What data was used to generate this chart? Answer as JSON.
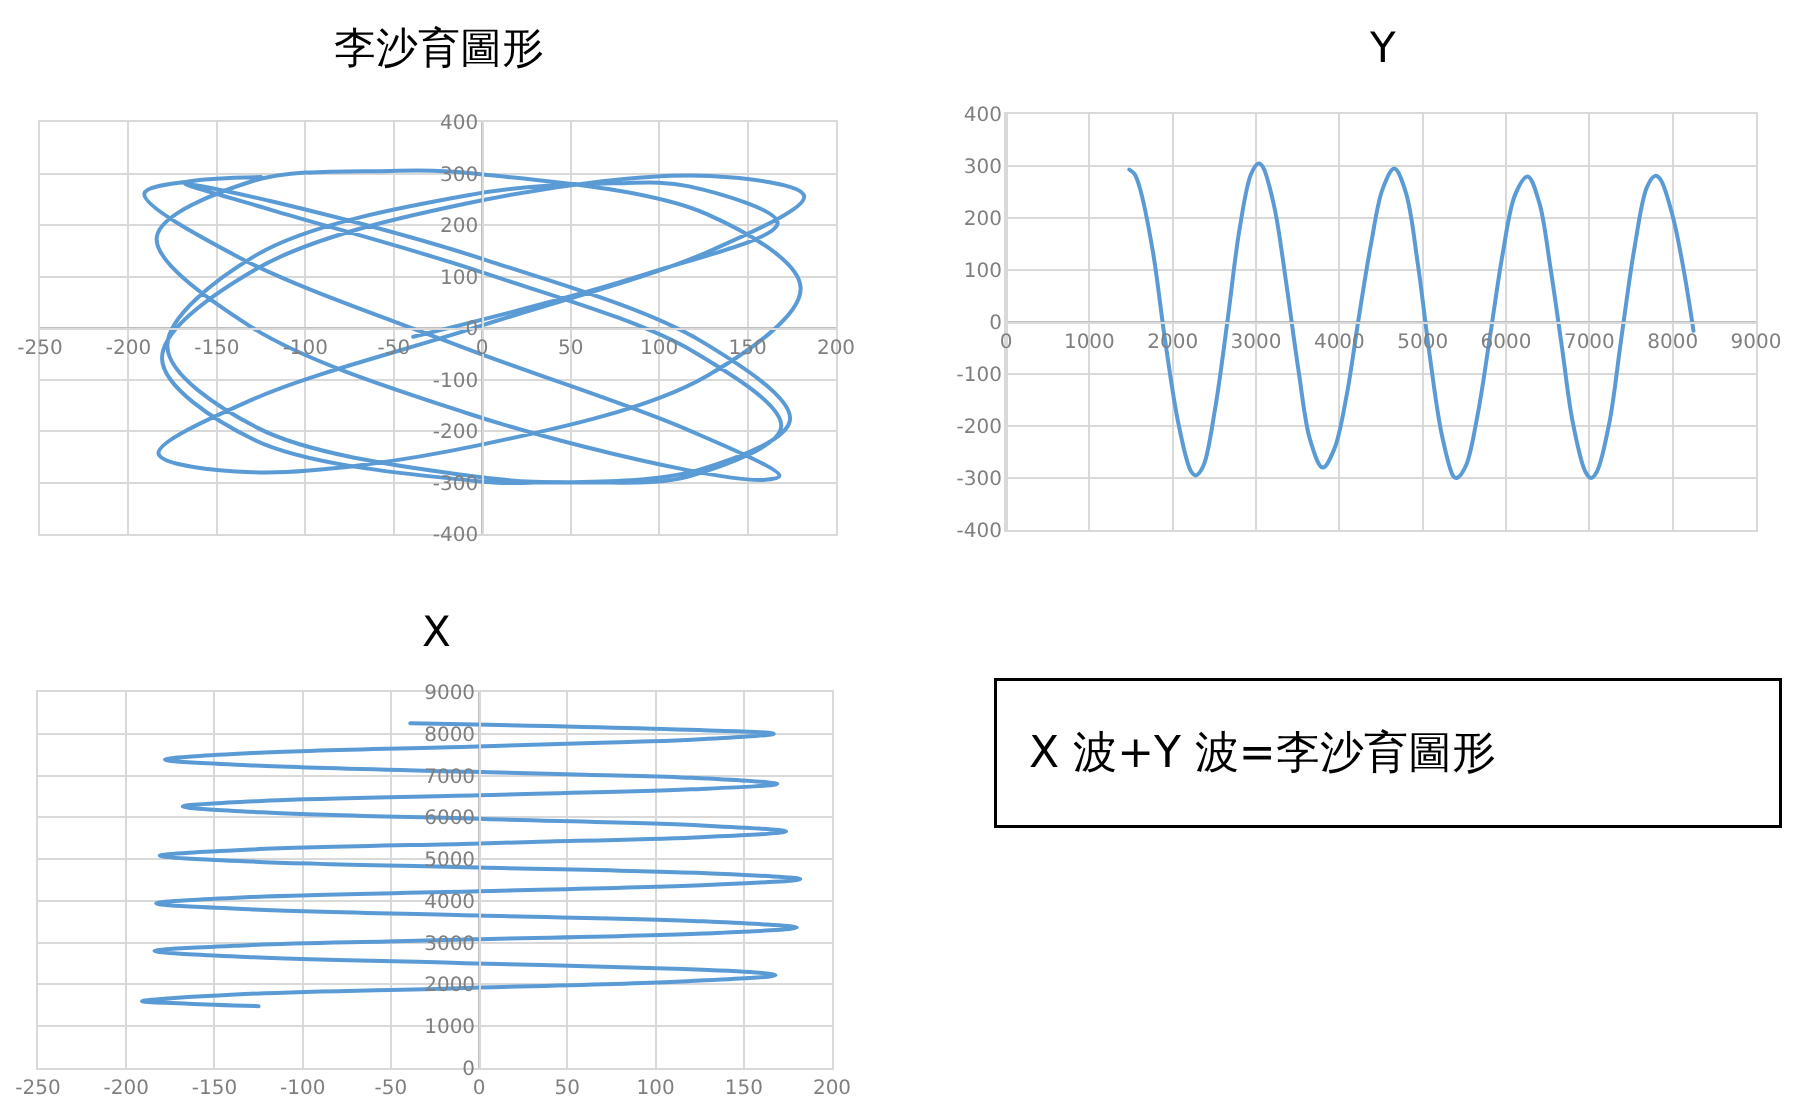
{
  "chart_data": [
    {
      "type": "line",
      "title": "李沙育圖形",
      "x": [
        -125,
        -165,
        -191,
        -138,
        -12,
        115,
        168,
        159,
        116,
        -8,
        -132,
        -184,
        -131,
        -52,
        -2,
        127,
        180,
        127,
        -1,
        -130,
        -183,
        -130,
        0,
        129,
        182,
        129,
        0,
        -128,
        -181,
        -129,
        -4,
        30,
        122,
        174,
        124,
        3,
        -118,
        -168,
        -119,
        0,
        120,
        169,
        118,
        60,
        -5,
        -127,
        -178,
        -128,
        -6,
        74,
        117,
        167,
        90,
        -39
      ],
      "series": [
        {
          "color": "#5b9bd5",
          "values": [
            293,
            285,
            261,
            138,
            -36,
            -196,
            -287,
            -295,
            -276,
            -166,
            5,
            176,
            284,
            305,
            299,
            221,
            78,
            -93,
            -227,
            -280,
            -244,
            -139,
            5,
            150,
            256,
            295,
            248,
            114,
            -59,
            -217,
            -297,
            -300,
            -276,
            -178,
            -26,
            131,
            245,
            280,
            229,
            108,
            -47,
            -192,
            -287,
            -300,
            -288,
            -194,
            -36,
            141,
            259,
            281,
            275,
            204,
            102,
            -17
          ]
        }
      ],
      "xlim": [
        -250,
        200
      ],
      "xticks": [
        -250,
        -200,
        -150,
        -100,
        -50,
        0,
        50,
        100,
        150,
        200
      ],
      "ylim": [
        -400,
        400
      ],
      "yticks": [
        -400,
        -300,
        -200,
        -100,
        0,
        100,
        200,
        300,
        400
      ],
      "grid": true
    },
    {
      "type": "line",
      "title": "Y",
      "x": [
        1480,
        1540,
        1600,
        1760,
        1910,
        2070,
        2220,
        2280,
        2370,
        2510,
        2660,
        2800,
        2940,
        3030,
        3080,
        3220,
        3360,
        3510,
        3650,
        3800,
        3940,
        4090,
        4230,
        4380,
        4520,
        4660,
        4800,
        4940,
        5080,
        5230,
        5370,
        5410,
        5520,
        5660,
        5810,
        5960,
        6110,
        6260,
        6400,
        6530,
        6670,
        6800,
        6950,
        7020,
        7090,
        7240,
        7380,
        7540,
        7690,
        7790,
        7850,
        8000,
        8130,
        8250
      ],
      "series": [
        {
          "color": "#5b9bd5",
          "values": [
            293,
            285,
            261,
            138,
            -36,
            -196,
            -287,
            -295,
            -276,
            -166,
            5,
            176,
            284,
            305,
            299,
            221,
            78,
            -93,
            -227,
            -280,
            -244,
            -139,
            5,
            150,
            256,
            295,
            248,
            114,
            -59,
            -217,
            -297,
            -300,
            -276,
            -178,
            -26,
            131,
            245,
            280,
            229,
            108,
            -47,
            -192,
            -287,
            -300,
            -288,
            -194,
            -36,
            141,
            259,
            281,
            275,
            204,
            102,
            -17
          ]
        }
      ],
      "xlim": [
        0,
        9000
      ],
      "xticks": [
        0,
        1000,
        2000,
        3000,
        4000,
        5000,
        6000,
        7000,
        8000,
        9000
      ],
      "ylim": [
        -400,
        400
      ],
      "yticks": [
        -400,
        -300,
        -200,
        -100,
        0,
        100,
        200,
        300,
        400
      ],
      "grid": true
    },
    {
      "type": "line",
      "title": "X",
      "x": [
        -125,
        -165,
        -191,
        -138,
        -12,
        115,
        168,
        159,
        116,
        -8,
        -132,
        -184,
        -131,
        -52,
        -2,
        127,
        180,
        127,
        -1,
        -130,
        -183,
        -130,
        0,
        129,
        182,
        129,
        0,
        -128,
        -181,
        -129,
        -4,
        30,
        122,
        174,
        124,
        3,
        -118,
        -168,
        -119,
        0,
        120,
        169,
        118,
        60,
        -5,
        -127,
        -178,
        -128,
        -6,
        74,
        117,
        167,
        90,
        -39
      ],
      "series": [
        {
          "color": "#5b9bd5",
          "values": [
            1480,
            1540,
            1600,
            1760,
            1910,
            2070,
            2220,
            2280,
            2370,
            2510,
            2660,
            2800,
            2940,
            3030,
            3080,
            3220,
            3360,
            3510,
            3650,
            3800,
            3940,
            4090,
            4230,
            4380,
            4520,
            4660,
            4800,
            4940,
            5080,
            5230,
            5370,
            5410,
            5520,
            5660,
            5810,
            5960,
            6110,
            6260,
            6400,
            6530,
            6670,
            6800,
            6950,
            7020,
            7090,
            7240,
            7380,
            7540,
            7690,
            7790,
            7850,
            8000,
            8130,
            8250
          ]
        }
      ],
      "xlim": [
        -250,
        200
      ],
      "xticks": [
        -250,
        -200,
        -150,
        -100,
        -50,
        0,
        50,
        100,
        150,
        200
      ],
      "ylim": [
        0,
        9000
      ],
      "yticks": [
        0,
        1000,
        2000,
        3000,
        4000,
        5000,
        6000,
        7000,
        8000,
        9000
      ],
      "grid": true
    },
    {
      "type": "other",
      "annotations": [
        "X 波+Y 波=李沙育圖形"
      ]
    }
  ]
}
